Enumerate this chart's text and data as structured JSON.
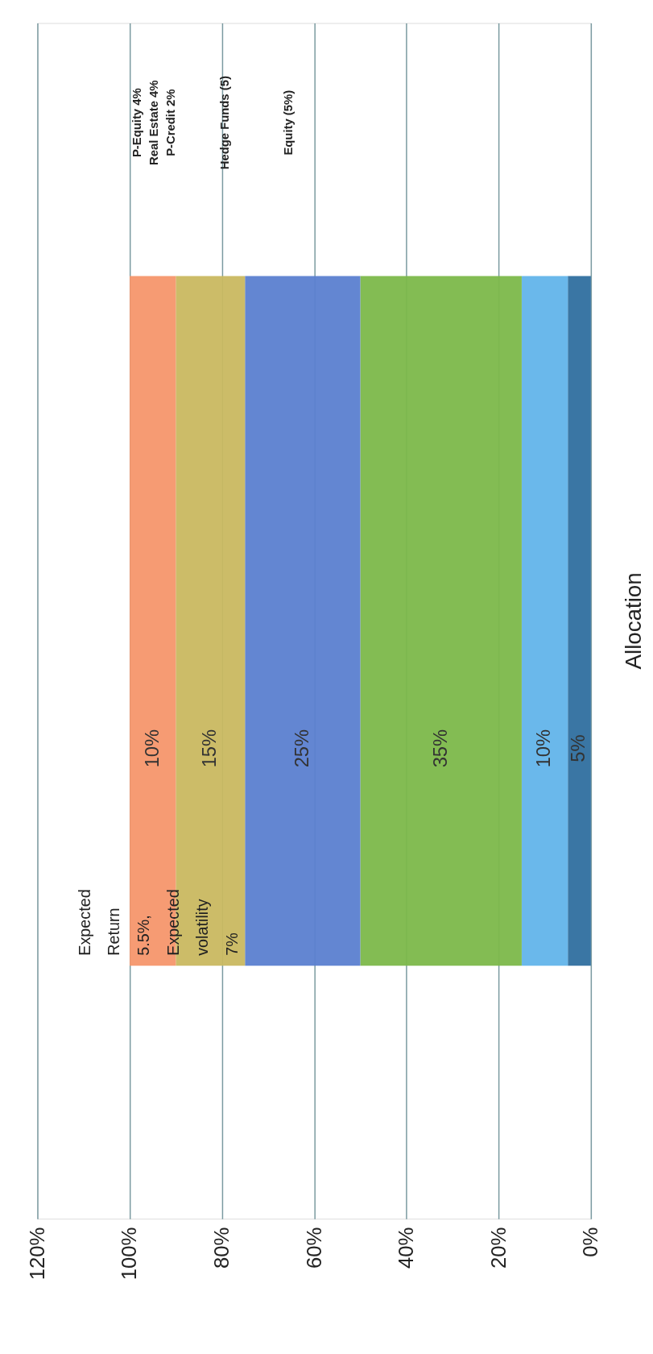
{
  "chart_data": {
    "type": "bar",
    "orientation": "horizontal",
    "stacked": true,
    "categories": [
      "Allocation"
    ],
    "series": [
      {
        "color": "#2f6f9f",
        "values": [
          5
        ],
        "value_labels": [
          "5%"
        ]
      },
      {
        "color": "#62b4ea",
        "values": [
          10
        ],
        "value_labels": [
          "10%"
        ]
      },
      {
        "color": "#7cb84a",
        "values": [
          35
        ],
        "value_labels": [
          "35%"
        ]
      },
      {
        "color": "#5b7fd0",
        "values": [
          25
        ],
        "value_labels": [
          "25%"
        ]
      },
      {
        "color": "#c9b860",
        "values": [
          15
        ],
        "value_labels": [
          "15%"
        ]
      },
      {
        "color": "#f5966b",
        "values": [
          10
        ],
        "value_labels": [
          "10%"
        ]
      }
    ],
    "xlim": [
      120,
      0
    ],
    "xticks": [
      {
        "value": 0,
        "label": "0%"
      },
      {
        "value": 20,
        "label": "20%"
      },
      {
        "value": 40,
        "label": "40%"
      },
      {
        "value": 60,
        "label": "60%"
      },
      {
        "value": 80,
        "label": "80%"
      },
      {
        "value": 100,
        "label": "100%"
      },
      {
        "value": 120,
        "label": "120%"
      }
    ],
    "grid": "x",
    "legend": false,
    "annotations": [
      "P-Equity 4%\nReal Estate 4%\nP-Credit 2%",
      "Hedge Funds (5)",
      "Equity (5%)",
      "Expected\nReturn\n5.5%,\nExpected\nvolatility\n7%"
    ]
  }
}
